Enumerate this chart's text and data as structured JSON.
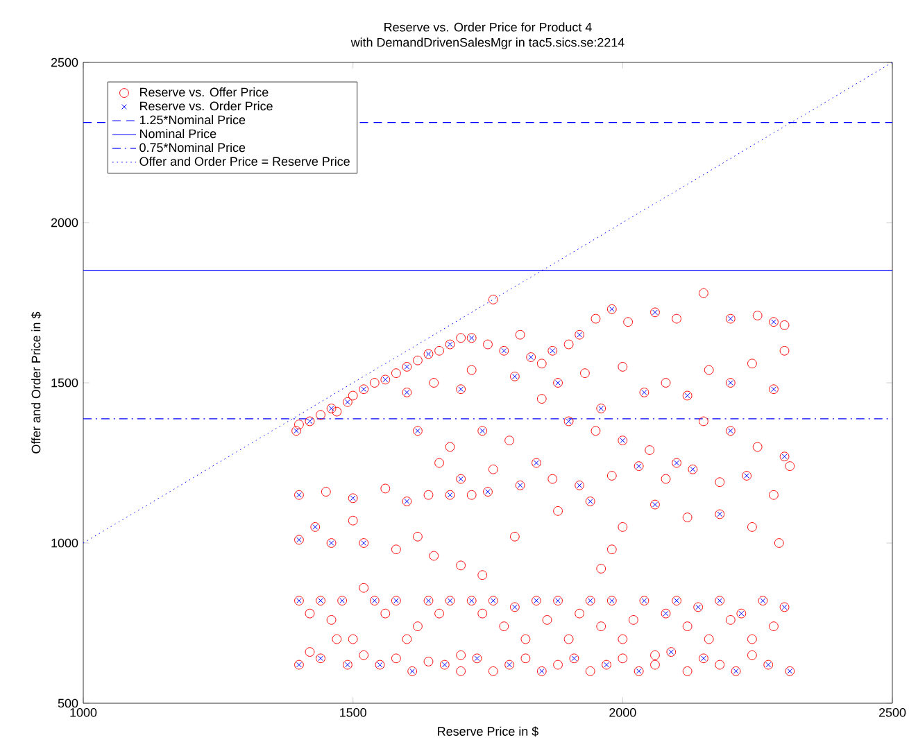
{
  "chart_data": {
    "type": "scatter",
    "title": "Reserve vs. Order Price for Product 4",
    "subtitle": "with DemandDrivenSalesMgr in tac5.sics.se:2214",
    "xlabel": "Reserve Price in $",
    "ylabel": "Offer and Order Price in $",
    "xlim": [
      1000,
      2500
    ],
    "ylim": [
      500,
      2500
    ],
    "xticks": [
      1000,
      1500,
      2000,
      2500
    ],
    "yticks": [
      500,
      1000,
      1500,
      2000,
      2500
    ],
    "grid": false,
    "legend": "top left",
    "series": [
      {
        "name": "Reserve vs. Offer Price",
        "marker": "circle",
        "color": "#ff0000",
        "x": [
          1395,
          1400,
          1420,
          1440,
          1460,
          1470,
          1490,
          1500,
          1520,
          1540,
          1560,
          1580,
          1600,
          1620,
          1640,
          1660,
          1680,
          1700,
          1720,
          1750,
          1780,
          1810,
          1830,
          1850,
          1870,
          1900,
          1920,
          1950,
          1980,
          2010,
          2060,
          2100,
          2150,
          2200,
          2250,
          2280,
          2300,
          1600,
          1650,
          1700,
          1720,
          1760,
          1800,
          1850,
          1880,
          1930,
          1960,
          2000,
          2040,
          2080,
          2120,
          2160,
          2200,
          2240,
          2280,
          2300,
          1900,
          1950,
          2000,
          2050,
          2100,
          2150,
          2200,
          2250,
          2300,
          2310,
          1620,
          1680,
          1740,
          1790,
          1840,
          1870,
          1920,
          1980,
          2030,
          2080,
          2130,
          2180,
          2230,
          2280,
          1660,
          1700,
          1760,
          1810,
          1880,
          1940,
          2000,
          2060,
          2120,
          2180,
          2240,
          2290,
          1400,
          1450,
          1500,
          1560,
          1600,
          1640,
          1680,
          1720,
          1750,
          1500,
          1430,
          1620,
          1580,
          1400,
          1460,
          1520,
          1650,
          1700,
          1740,
          1800,
          1980,
          1960,
          1400,
          1420,
          1440,
          1460,
          1480,
          1500,
          1520,
          1540,
          1560,
          1580,
          1600,
          1620,
          1640,
          1660,
          1680,
          1700,
          1720,
          1740,
          1760,
          1780,
          1800,
          1820,
          1840,
          1860,
          1880,
          1900,
          1920,
          1940,
          1960,
          1980,
          2000,
          2020,
          2040,
          2060,
          2080,
          2100,
          2120,
          2140,
          2160,
          2180,
          2200,
          2220,
          2240,
          2260,
          2280,
          2300,
          1400,
          1420,
          1440,
          1470,
          1490,
          1520,
          1550,
          1580,
          1610,
          1640,
          1670,
          1700,
          1730,
          1760,
          1790,
          1820,
          1850,
          1880,
          1910,
          1940,
          1970,
          2000,
          2030,
          2060,
          2090,
          2120,
          2150,
          2180,
          2210,
          2240,
          2270,
          2310
        ],
        "values": [
          1350,
          1370,
          1380,
          1400,
          1420,
          1410,
          1440,
          1460,
          1480,
          1500,
          1510,
          1530,
          1550,
          1570,
          1590,
          1600,
          1620,
          1640,
          1640,
          1620,
          1600,
          1650,
          1580,
          1560,
          1600,
          1620,
          1650,
          1700,
          1730,
          1690,
          1720,
          1700,
          1780,
          1700,
          1710,
          1690,
          1680,
          1470,
          1500,
          1480,
          1540,
          1760,
          1520,
          1450,
          1500,
          1530,
          1420,
          1550,
          1470,
          1500,
          1460,
          1540,
          1500,
          1560,
          1480,
          1600,
          1380,
          1350,
          1320,
          1290,
          1250,
          1380,
          1350,
          1300,
          1270,
          1240,
          1350,
          1300,
          1350,
          1320,
          1250,
          1200,
          1180,
          1210,
          1240,
          1200,
          1230,
          1190,
          1210,
          1150,
          1250,
          1200,
          1230,
          1180,
          1100,
          1130,
          1050,
          1120,
          1080,
          1090,
          1050,
          1000,
          1150,
          1160,
          1140,
          1170,
          1130,
          1150,
          1150,
          1150,
          1160,
          1070,
          1050,
          1020,
          980,
          1010,
          1000,
          1000,
          960,
          930,
          900,
          1020,
          980,
          920,
          820,
          780,
          820,
          760,
          820,
          700,
          860,
          820,
          780,
          820,
          700,
          740,
          820,
          780,
          820,
          650,
          820,
          780,
          820,
          740,
          800,
          700,
          820,
          760,
          820,
          700,
          780,
          820,
          740,
          820,
          700,
          760,
          820,
          650,
          780,
          820,
          740,
          800,
          700,
          820,
          760,
          780,
          700,
          820,
          740,
          800,
          620,
          660,
          640,
          700,
          620,
          650,
          620,
          640,
          600,
          630,
          620,
          600,
          640,
          600,
          620,
          640,
          600,
          620,
          640,
          600,
          620,
          640,
          600,
          620,
          660,
          600,
          640,
          620,
          600,
          650,
          620,
          600
        ]
      },
      {
        "name": "Reserve vs. Order Price",
        "marker": "cross",
        "color": "#0000ff",
        "x": [
          1395,
          1420,
          1460,
          1490,
          1520,
          1560,
          1600,
          1640,
          1680,
          1720,
          1780,
          1830,
          1870,
          1920,
          1980,
          2060,
          2200,
          2280,
          1600,
          1700,
          1800,
          1880,
          1960,
          2040,
          2120,
          2200,
          2280,
          1900,
          2000,
          2100,
          2200,
          2300,
          1620,
          1740,
          1840,
          1920,
          2030,
          2130,
          2230,
          1700,
          1810,
          1940,
          2060,
          2180,
          1400,
          1500,
          1600,
          1680,
          1750,
          1430,
          1400,
          1460,
          1520,
          1400,
          1440,
          1480,
          1540,
          1580,
          1640,
          1680,
          1720,
          1760,
          1800,
          1840,
          1880,
          1940,
          1980,
          2040,
          2080,
          2100,
          2140,
          2180,
          2220,
          2260,
          2300,
          1400,
          1440,
          1490,
          1550,
          1610,
          1670,
          1730,
          1790,
          1850,
          1910,
          1970,
          2030,
          2090,
          2150,
          2210,
          2270,
          2310
        ],
        "values": [
          1350,
          1380,
          1420,
          1440,
          1480,
          1510,
          1550,
          1590,
          1620,
          1640,
          1600,
          1580,
          1600,
          1650,
          1730,
          1720,
          1700,
          1690,
          1470,
          1480,
          1520,
          1500,
          1420,
          1470,
          1460,
          1500,
          1480,
          1380,
          1320,
          1250,
          1350,
          1270,
          1350,
          1350,
          1250,
          1180,
          1240,
          1230,
          1210,
          1200,
          1180,
          1130,
          1120,
          1090,
          1150,
          1140,
          1130,
          1150,
          1160,
          1050,
          1010,
          1000,
          1000,
          820,
          820,
          820,
          820,
          820,
          820,
          820,
          820,
          820,
          800,
          820,
          820,
          820,
          820,
          820,
          780,
          820,
          800,
          820,
          780,
          820,
          800,
          620,
          640,
          620,
          620,
          600,
          620,
          640,
          620,
          600,
          640,
          620,
          600,
          660,
          640,
          600,
          620,
          600
        ]
      },
      {
        "name": "Offer and Order Price = Reserve Price",
        "type": "line",
        "line_style": "dotted",
        "color": "#0000ff",
        "x": [
          1000,
          2500
        ],
        "values": [
          1000,
          2500
        ]
      }
    ],
    "ref_lines": [
      {
        "axis": "y",
        "value": 2312.5,
        "label": "1.25*Nominal Price",
        "color": "#0000ff",
        "line_style": "dashed"
      },
      {
        "axis": "y",
        "value": 1850,
        "label": "Nominal Price",
        "color": "#0000ff",
        "line_style": "solid"
      },
      {
        "axis": "y",
        "value": 1387.5,
        "label": "0.75*Nominal Price",
        "color": "#0000ff",
        "line_style": "dashdot"
      }
    ]
  }
}
